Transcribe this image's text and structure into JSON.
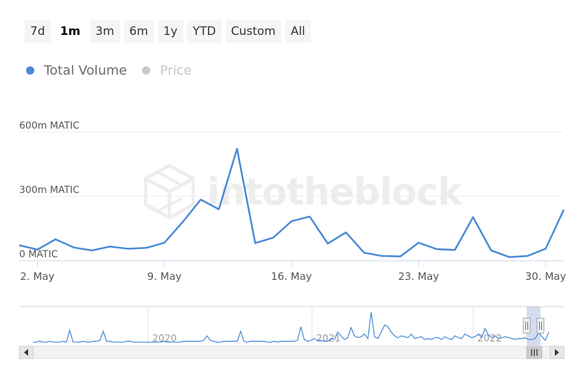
{
  "range_selector": {
    "buttons": [
      {
        "label": "7d",
        "active": false
      },
      {
        "label": "1m",
        "active": true
      },
      {
        "label": "3m",
        "active": false
      },
      {
        "label": "6m",
        "active": false
      },
      {
        "label": "1y",
        "active": false
      },
      {
        "label": "YTD",
        "active": false
      },
      {
        "label": "Custom",
        "active": false
      },
      {
        "label": "All",
        "active": false
      }
    ]
  },
  "legend": {
    "items": [
      {
        "label": "Total Volume",
        "color": "#4a8ad6",
        "enabled": true
      },
      {
        "label": "Price",
        "color": "#c8c8c8",
        "enabled": false
      }
    ]
  },
  "watermark": {
    "text": "intotheblock"
  },
  "chart_data": {
    "type": "line",
    "series": [
      {
        "name": "Total Volume",
        "color": "#4a8ad6",
        "x": [
          "2022-05-01",
          "2022-05-02",
          "2022-05-03",
          "2022-05-04",
          "2022-05-05",
          "2022-05-06",
          "2022-05-07",
          "2022-05-08",
          "2022-05-09",
          "2022-05-10",
          "2022-05-11",
          "2022-05-12",
          "2022-05-13",
          "2022-05-14",
          "2022-05-15",
          "2022-05-16",
          "2022-05-17",
          "2022-05-18",
          "2022-05-19",
          "2022-05-20",
          "2022-05-21",
          "2022-05-22",
          "2022-05-23",
          "2022-05-24",
          "2022-05-25",
          "2022-05-26",
          "2022-05-27",
          "2022-05-28",
          "2022-05-29",
          "2022-05-30",
          "2022-05-31"
        ],
        "values": [
          72,
          52,
          100,
          62,
          48,
          66,
          56,
          60,
          84,
          180,
          285,
          240,
          522,
          82,
          108,
          184,
          206,
          80,
          132,
          37,
          22,
          20,
          84,
          54,
          50,
          203,
          48,
          17,
          22,
          56,
          238
        ]
      }
    ],
    "y_axis": {
      "ticks": [
        0,
        300,
        600
      ],
      "tick_labels": [
        "0 MATIC",
        "300m MATIC",
        "600m MATIC"
      ],
      "range": [
        0,
        600
      ]
    },
    "x_axis": {
      "tick_dates": [
        "2022-05-02",
        "2022-05-09",
        "2022-05-16",
        "2022-05-23",
        "2022-05-30"
      ],
      "tick_labels": [
        "2. May",
        "9. May",
        "16. May",
        "23. May",
        "30. May"
      ]
    },
    "grid": true,
    "navigator": {
      "year_labels": [
        "2020",
        "2021",
        "2022"
      ],
      "values": [
        3,
        3,
        4,
        3,
        3,
        4,
        3,
        3,
        3,
        4,
        3,
        16,
        3,
        3,
        3,
        4,
        3,
        3,
        4,
        4,
        5,
        15,
        4,
        4,
        3,
        3,
        3,
        3,
        4,
        4,
        3,
        3,
        3,
        3,
        3,
        3,
        3,
        3,
        3,
        4,
        3,
        3,
        3,
        3,
        3,
        4,
        4,
        4,
        4,
        4,
        4,
        5,
        10,
        5,
        4,
        3,
        3,
        4,
        4,
        4,
        4,
        4,
        15,
        4,
        3,
        4,
        4,
        4,
        4,
        4,
        3,
        3,
        4,
        3,
        4,
        4,
        4,
        4,
        4,
        5,
        20,
        6,
        4,
        5,
        7,
        5,
        5,
        4,
        4,
        7,
        6,
        14,
        10,
        6,
        8,
        19,
        10,
        8,
        9,
        12,
        7,
        36,
        9,
        7,
        14,
        22,
        20,
        14,
        10,
        8,
        10,
        9,
        8,
        12,
        7,
        8,
        9,
        6,
        7,
        6,
        8,
        8,
        6,
        9,
        7,
        6,
        10,
        8,
        7,
        12,
        10,
        8,
        9,
        12,
        8,
        18,
        11,
        8,
        10,
        7,
        8,
        9,
        8,
        7,
        6,
        7,
        7,
        8,
        6,
        6,
        7,
        14,
        9,
        5,
        14
      ],
      "selected_range": [
        "2022-05-01",
        "2022-05-31"
      ]
    }
  }
}
